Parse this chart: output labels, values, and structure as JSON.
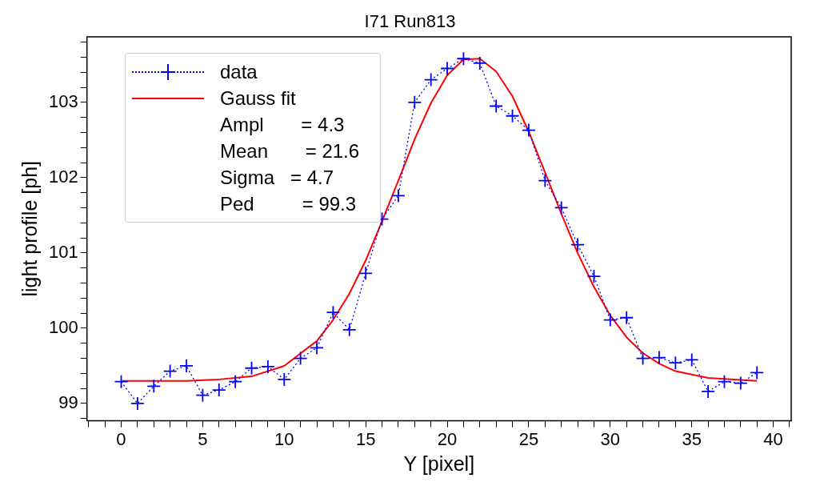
{
  "chart_data": {
    "type": "line",
    "title": "I71 Run813",
    "xlabel": "Y [pixel]",
    "ylabel": "light profile [ph]",
    "xlim": [
      -2.1,
      41.1
    ],
    "xticks": [
      {
        "value": -2,
        "label": null
      },
      {
        "value": -1,
        "label": null
      },
      0,
      {
        "value": 1,
        "label": null
      },
      {
        "value": 2,
        "label": null
      },
      {
        "value": 3,
        "label": null
      },
      {
        "value": 4,
        "label": null
      },
      5,
      {
        "value": 6,
        "label": null
      },
      {
        "value": 7,
        "label": null
      },
      {
        "value": 8,
        "label": null
      },
      {
        "value": 9,
        "label": null
      },
      10,
      {
        "value": 11,
        "label": null
      },
      {
        "value": 12,
        "label": null
      },
      {
        "value": 13,
        "label": null
      },
      {
        "value": 14,
        "label": null
      },
      15,
      {
        "value": 16,
        "label": null
      },
      {
        "value": 17,
        "label": null
      },
      {
        "value": 18,
        "label": null
      },
      {
        "value": 19,
        "label": null
      },
      20,
      {
        "value": 21,
        "label": null
      },
      {
        "value": 22,
        "label": null
      },
      {
        "value": 23,
        "label": null
      },
      {
        "value": 24,
        "label": null
      },
      25,
      {
        "value": 26,
        "label": null
      },
      {
        "value": 27,
        "label": null
      },
      {
        "value": 28,
        "label": null
      },
      {
        "value": 29,
        "label": null
      },
      30,
      {
        "value": 31,
        "label": null
      },
      {
        "value": 32,
        "label": null
      },
      {
        "value": 33,
        "label": null
      },
      {
        "value": 34,
        "label": null
      },
      35,
      {
        "value": 36,
        "label": null
      },
      {
        "value": 37,
        "label": null
      },
      {
        "value": 38,
        "label": null
      },
      {
        "value": 39,
        "label": null
      },
      40,
      {
        "value": 41,
        "label": null
      }
    ],
    "ylim": [
      98.77,
      103.87
    ],
    "yticks": [
      {
        "value": 98.8,
        "label": null
      },
      99,
      {
        "value": 99.2,
        "label": null
      },
      {
        "value": 99.4,
        "label": null
      },
      {
        "value": 99.6,
        "label": null
      },
      {
        "value": 99.8,
        "label": null
      },
      100,
      {
        "value": 100.2,
        "label": null
      },
      {
        "value": 100.4,
        "label": null
      },
      {
        "value": 100.6,
        "label": null
      },
      {
        "value": 100.8,
        "label": null
      },
      101,
      {
        "value": 101.2,
        "label": null
      },
      {
        "value": 101.4,
        "label": null
      },
      {
        "value": 101.6,
        "label": null
      },
      {
        "value": 101.8,
        "label": null
      },
      102,
      {
        "value": 102.2,
        "label": null
      },
      {
        "value": 102.4,
        "label": null
      },
      {
        "value": 102.6,
        "label": null
      },
      {
        "value": 102.8,
        "label": null
      },
      103,
      {
        "value": 103.2,
        "label": null
      },
      {
        "value": 103.4,
        "label": null
      },
      {
        "value": 103.6,
        "label": null
      },
      {
        "value": 103.8,
        "label": null
      }
    ],
    "grid": false,
    "legend": "top left",
    "annotations": [
      "Ampl       = 4.3",
      "Mean       = 21.6",
      "Sigma   = 4.7",
      "Ped         = 99.3"
    ],
    "series": [
      {
        "name": "data",
        "color": "#0000ff",
        "marker": "cross",
        "line_style": "dotted",
        "x": [
          0,
          1,
          2,
          3,
          4,
          5,
          6,
          7,
          8,
          9,
          10,
          11,
          12,
          13,
          14,
          15,
          16,
          17,
          18,
          19,
          20,
          21,
          22,
          23,
          24,
          25,
          26,
          27,
          28,
          29,
          30,
          31,
          32,
          33,
          34,
          35,
          36,
          37,
          38,
          39
        ],
        "values": [
          99.29,
          99.0,
          99.23,
          99.43,
          99.5,
          99.11,
          99.18,
          99.29,
          99.47,
          99.49,
          99.32,
          99.6,
          99.74,
          100.21,
          99.98,
          100.73,
          101.45,
          101.76,
          103.0,
          103.3,
          103.45,
          103.58,
          103.52,
          102.95,
          102.82,
          102.63,
          101.96,
          101.6,
          101.11,
          100.69,
          100.11,
          100.14,
          99.6,
          99.61,
          99.54,
          99.58,
          99.16,
          99.29,
          99.27,
          99.41
        ]
      },
      {
        "name": "Gauss fit",
        "color": "#ff0000",
        "marker": "none",
        "line_style": "solid",
        "x": [
          0,
          4,
          6,
          8,
          10,
          12,
          13,
          14,
          15,
          16,
          17,
          18,
          19,
          20,
          21,
          22,
          23,
          24,
          25,
          26,
          27,
          28,
          29,
          30,
          31,
          32,
          33,
          34,
          36,
          39
        ],
        "values": [
          99.3,
          99.3,
          99.32,
          99.36,
          99.5,
          99.83,
          100.11,
          100.46,
          100.9,
          101.42,
          101.96,
          102.51,
          102.99,
          103.36,
          103.57,
          103.58,
          103.41,
          103.08,
          102.61,
          102.07,
          101.52,
          101.0,
          100.55,
          100.17,
          99.88,
          99.67,
          99.53,
          99.43,
          99.34,
          99.3
        ]
      }
    ]
  }
}
